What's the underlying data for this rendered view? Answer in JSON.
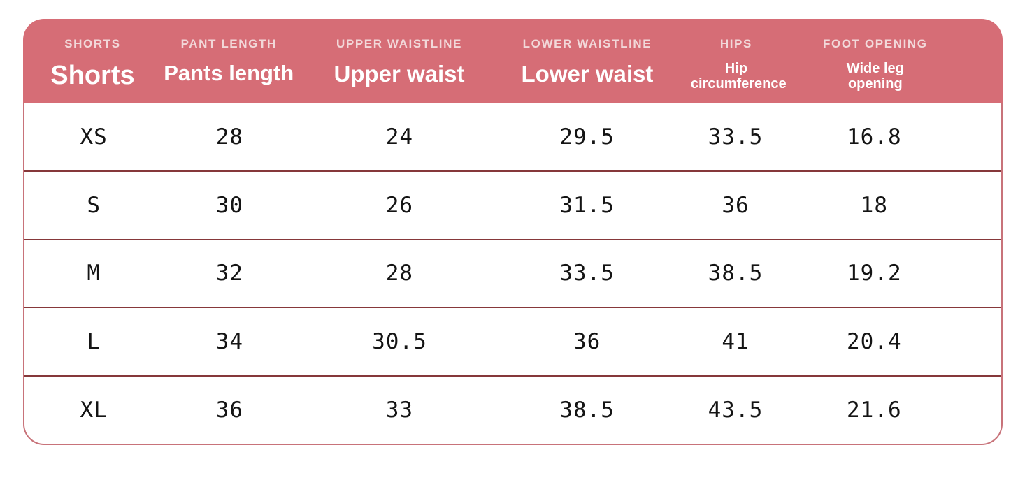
{
  "chart_data": {
    "type": "table",
    "columns": [
      {
        "caps": "SHORTS",
        "label": "Shorts"
      },
      {
        "caps": "PANT LENGTH",
        "label": "Pants length"
      },
      {
        "caps": "UPPER WAISTLINE",
        "label": "Upper waist"
      },
      {
        "caps": "LOWER WAISTLINE",
        "label": "Lower waist"
      },
      {
        "caps": "HIPS",
        "label": "Hip circumference"
      },
      {
        "caps": "FOOT OPENING",
        "label": "Wide leg opening"
      }
    ],
    "rows": [
      [
        "XS",
        28,
        24,
        29.5,
        33.5,
        16.8
      ],
      [
        "S",
        30,
        26,
        31.5,
        36,
        18
      ],
      [
        "M",
        32,
        28,
        33.5,
        38.5,
        19.2
      ],
      [
        "L",
        34,
        30.5,
        36,
        41,
        20.4
      ],
      [
        "XL",
        36,
        33,
        38.5,
        43.5,
        21.6
      ]
    ],
    "layout": {
      "grid": "horizontal-dividers-only",
      "legend": "none"
    }
  },
  "colors": {
    "header_bg": "#d66d76",
    "header_caps": "#f2d8d9",
    "header_text": "#ffffff",
    "body_bg": "#ffffff",
    "table_border": "#c8737a",
    "row_divider": "#86383a",
    "cell_text": "#141414"
  }
}
